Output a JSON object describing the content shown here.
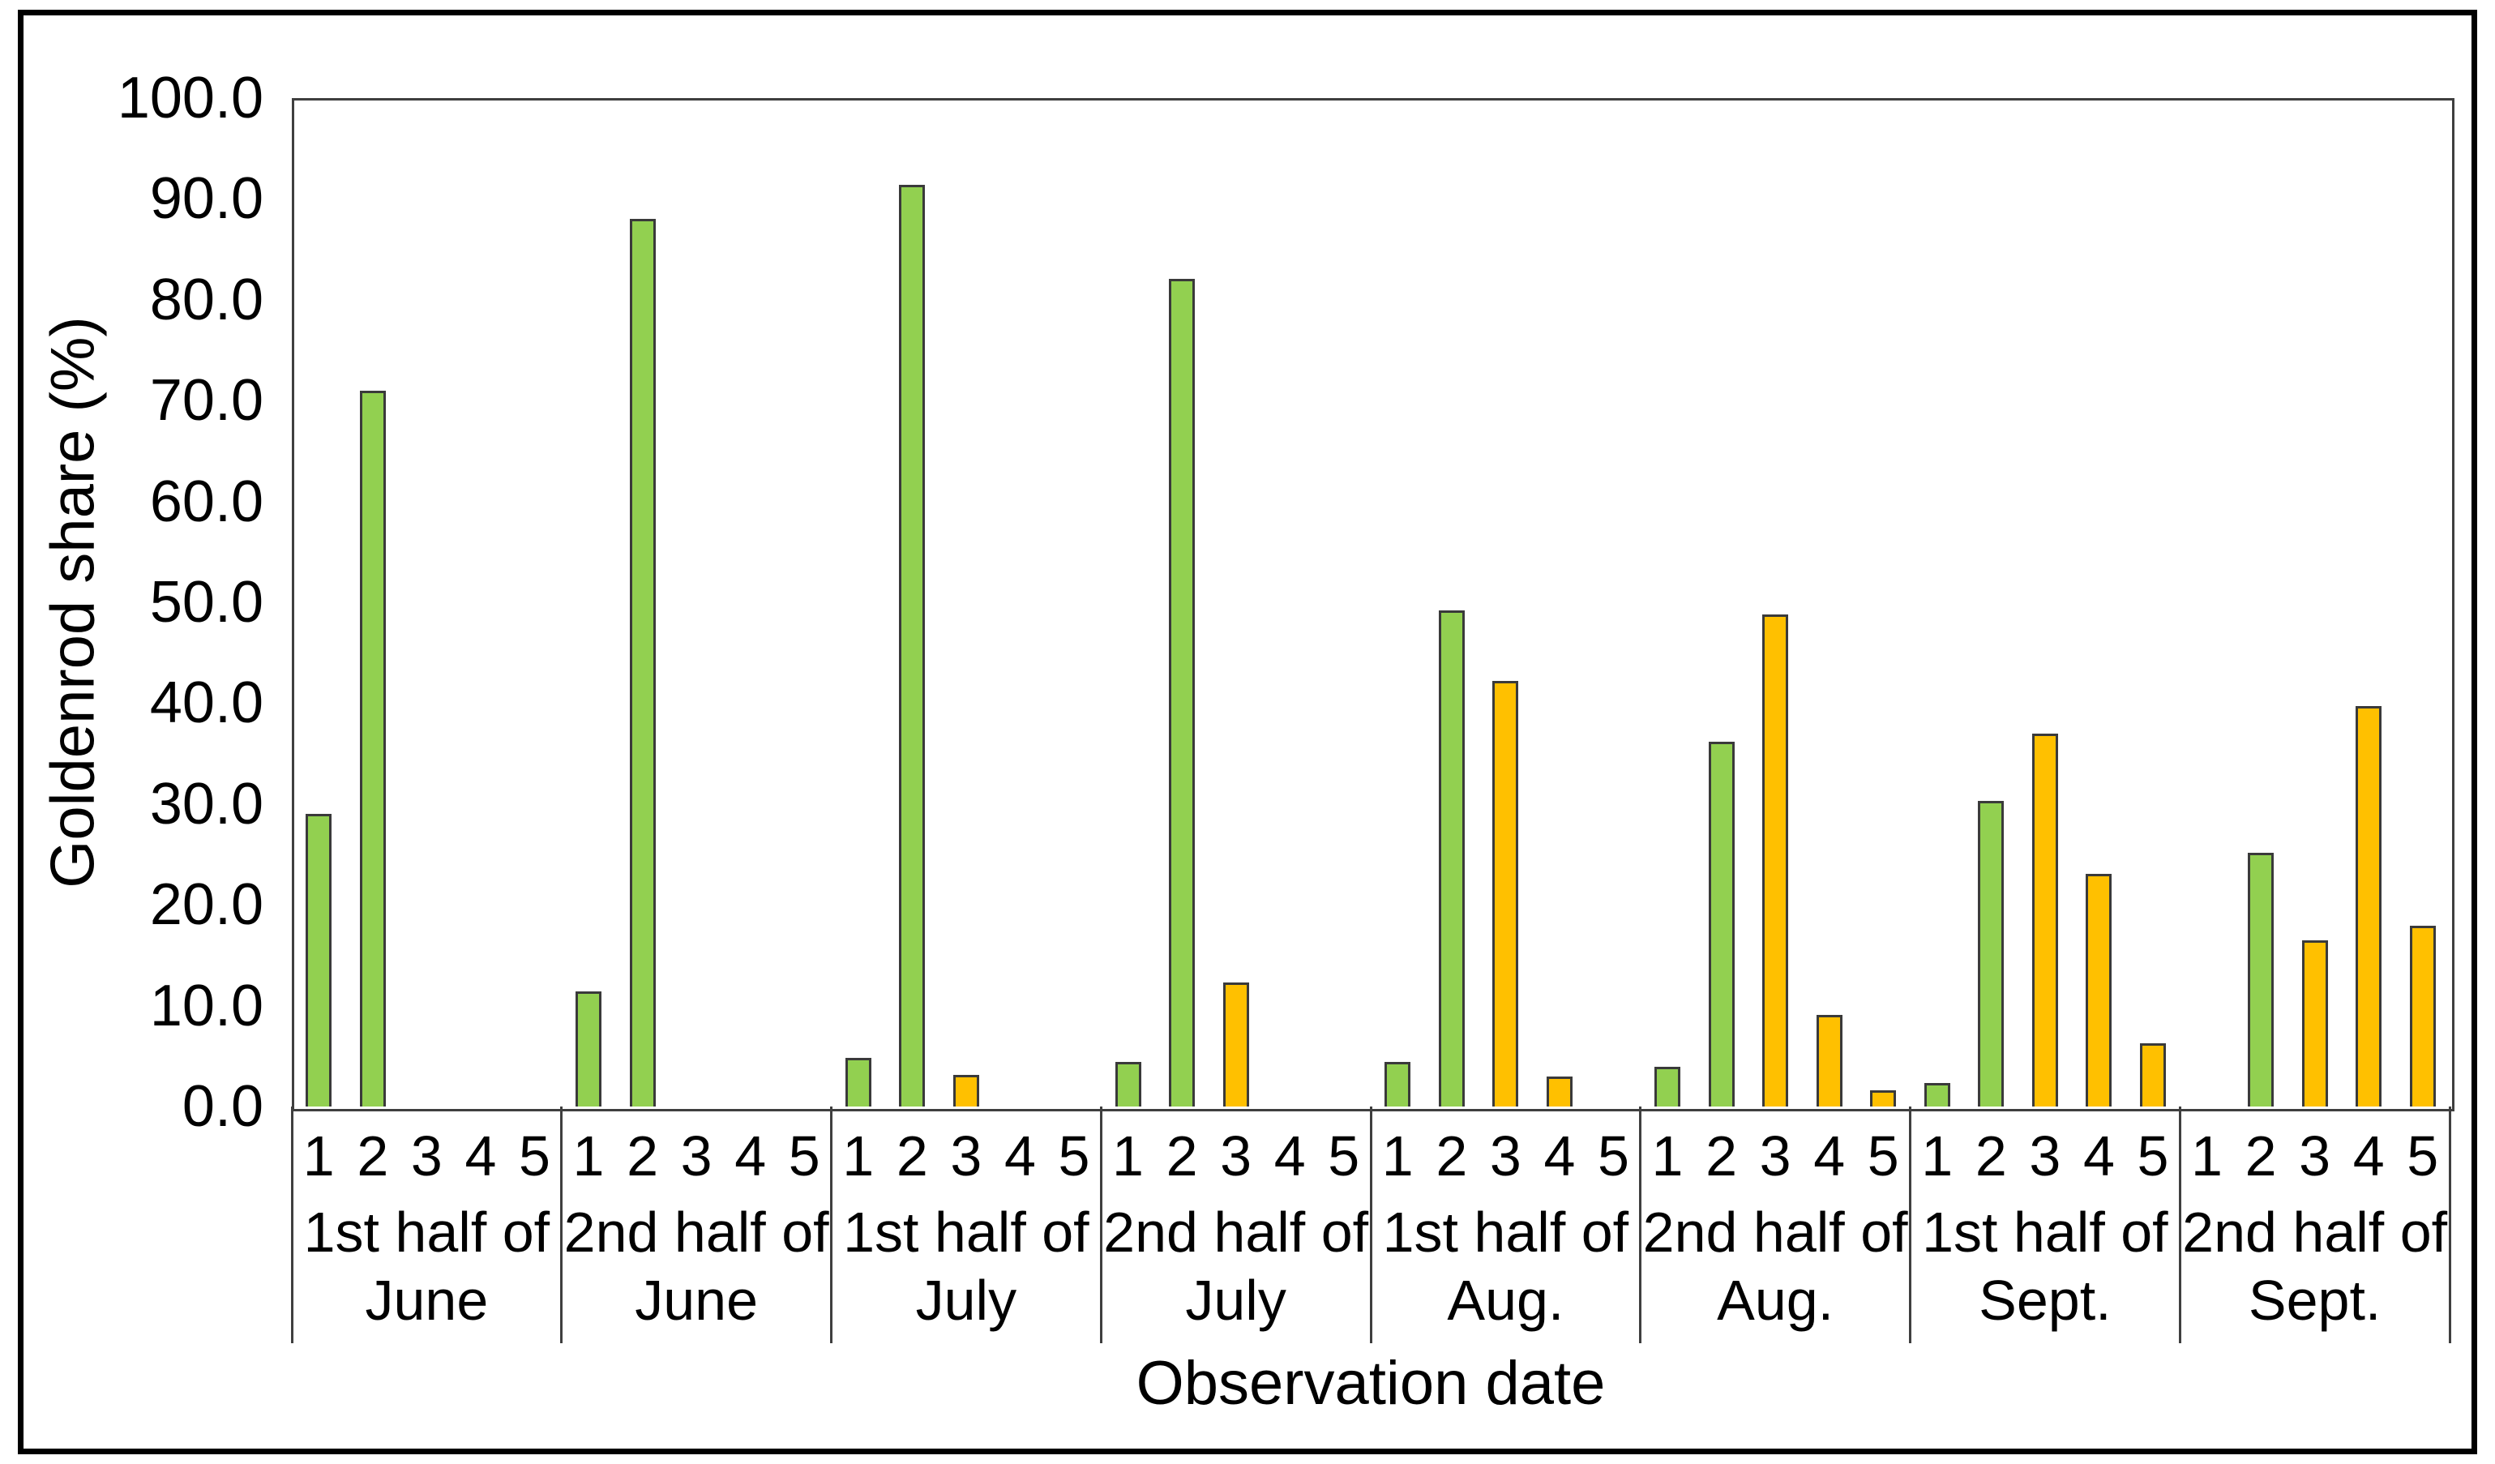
{
  "figure": {
    "kind": "excel-style clustered bar chart",
    "background": "#ffffff"
  },
  "colors": {
    "green_fill": "#92D050",
    "yellow_fill": "#FFC000",
    "bar_border": "#3a3a3a",
    "axis_line": "#3f3f3f",
    "outer_frame": "#000000",
    "text": "#000000"
  },
  "y_axis": {
    "title": "Goldenrod share (%)",
    "tick_labels": [
      "100.0",
      "90.0",
      "80.0",
      "70.0",
      "60.0",
      "50.0",
      "40.0",
      "30.0",
      "20.0",
      "10.0",
      "0.0"
    ]
  },
  "x_axis": {
    "title": "Observation date",
    "position_labels": [
      "1",
      "2",
      "3",
      "4",
      "5"
    ]
  },
  "chart_data": {
    "type": "bar",
    "title": "",
    "xlabel": "Observation date",
    "ylabel": "Goldenrod share (%)",
    "ylim": [
      0,
      100
    ],
    "y_tick_step": 10,
    "grid": false,
    "legend": "none",
    "positions": [
      1,
      2,
      3,
      4,
      5
    ],
    "groups": [
      {
        "category": "1st half of June",
        "label_line1": "1st half of",
        "label_line2": "June",
        "values": [
          29.0,
          71.0,
          0,
          0,
          0
        ],
        "bar_colors": [
          "green",
          "green",
          null,
          null,
          null
        ]
      },
      {
        "category": "2nd half of June",
        "label_line1": "2nd half of",
        "label_line2": "June",
        "values": [
          11.4,
          88.0,
          0,
          0,
          0
        ],
        "bar_colors": [
          "green",
          "green",
          null,
          null,
          null
        ]
      },
      {
        "category": "1st half of July",
        "label_line1": "1st half of",
        "label_line2": "July",
        "values": [
          4.8,
          91.4,
          3.1,
          0,
          0
        ],
        "bar_colors": [
          "green",
          "green",
          "yellow",
          null,
          null
        ]
      },
      {
        "category": "2nd half of July",
        "label_line1": "2nd half of",
        "label_line2": "July",
        "values": [
          4.4,
          82.1,
          12.3,
          0,
          0
        ],
        "bar_colors": [
          "green",
          "green",
          "yellow",
          null,
          null
        ]
      },
      {
        "category": "1st half of Aug.",
        "label_line1": "1st half of",
        "label_line2": "Aug.",
        "values": [
          4.4,
          49.2,
          42.2,
          3.0,
          0
        ],
        "bar_colors": [
          "green",
          "green",
          "yellow",
          "yellow",
          null
        ]
      },
      {
        "category": "2nd half of Aug.",
        "label_line1": "2nd half of",
        "label_line2": "Aug.",
        "values": [
          3.9,
          36.2,
          48.8,
          9.1,
          1.6
        ],
        "bar_colors": [
          "green",
          "green",
          "yellow",
          "yellow",
          "yellow"
        ]
      },
      {
        "category": "1st half of Sept.",
        "label_line1": "1st half of",
        "label_line2": "Sept.",
        "values": [
          2.3,
          30.3,
          37.0,
          23.1,
          6.3
        ],
        "bar_colors": [
          "green",
          "green",
          "yellow",
          "yellow",
          "yellow"
        ]
      },
      {
        "category": "2nd half of Sept.",
        "label_line1": "2nd half of",
        "label_line2": "Sept.",
        "values": [
          0,
          25.2,
          16.5,
          39.7,
          17.9
        ],
        "bar_colors": [
          null,
          "green",
          "yellow",
          "yellow",
          "yellow"
        ]
      }
    ],
    "series_legend_colors": {
      "green": "#92D050",
      "yellow": "#FFC000"
    }
  }
}
